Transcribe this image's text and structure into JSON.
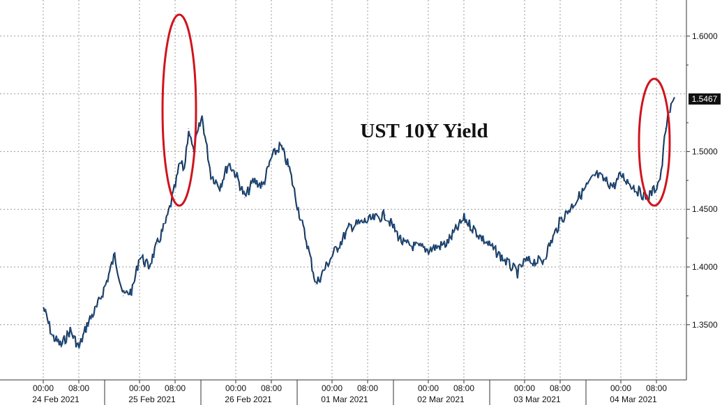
{
  "chart_data": {
    "type": "line",
    "title": "UST 10Y Yield",
    "xlabel": "",
    "ylabel": "",
    "ylim": [
      1.31,
      1.63
    ],
    "grid": true,
    "y_ticks": [
      "1.3500",
      "1.4000",
      "1.4500",
      "1.5000",
      "1.6000"
    ],
    "last_value_label": "1.5467",
    "x_ticks": [
      {
        "time": "00:00",
        "date": "24 Feb 2021"
      },
      {
        "time": "08:00",
        "date": ""
      },
      {
        "time": "00:00",
        "date": "25 Feb 2021"
      },
      {
        "time": "08:00",
        "date": ""
      },
      {
        "time": "00:00",
        "date": "26 Feb 2021"
      },
      {
        "time": "08:00",
        "date": ""
      },
      {
        "time": "00:00",
        "date": "01 Mar 2021"
      },
      {
        "time": "08:00",
        "date": ""
      },
      {
        "time": "00:00",
        "date": "02 Mar 2021"
      },
      {
        "time": "08:00",
        "date": ""
      },
      {
        "time": "00:00",
        "date": "03 Mar 2021"
      },
      {
        "time": "08:00",
        "date": ""
      },
      {
        "time": "00:00",
        "date": "04 Mar 2021"
      },
      {
        "time": "08:00",
        "date": ""
      }
    ],
    "series": [
      {
        "color": "#1f5fa8",
        "x": [
          "24 Feb 2021 00:00",
          "24 Feb 2021 02:00",
          "24 Feb 2021 04:00",
          "24 Feb 2021 06:00",
          "24 Feb 2021 08:00",
          "24 Feb 2021 10:00",
          "24 Feb 2021 12:00",
          "24 Feb 2021 14:00",
          "24 Feb 2021 16:00",
          "24 Feb 2021 18:00",
          "24 Feb 2021 20:00",
          "25 Feb 2021 00:00",
          "25 Feb 2021 02:00",
          "25 Feb 2021 04:00",
          "25 Feb 2021 06:00",
          "25 Feb 2021 07:00",
          "25 Feb 2021 08:00",
          "25 Feb 2021 09:00",
          "25 Feb 2021 10:00",
          "25 Feb 2021 11:00",
          "25 Feb 2021 12:00",
          "25 Feb 2021 14:00",
          "25 Feb 2021 16:00",
          "25 Feb 2021 18:00",
          "25 Feb 2021 20:00",
          "26 Feb 2021 00:00",
          "26 Feb 2021 02:00",
          "26 Feb 2021 04:00",
          "26 Feb 2021 06:00",
          "26 Feb 2021 08:00",
          "26 Feb 2021 10:00",
          "26 Feb 2021 12:00",
          "26 Feb 2021 14:00",
          "26 Feb 2021 16:00",
          "26 Feb 2021 18:00",
          "01 Mar 2021 00:00",
          "01 Mar 2021 04:00",
          "01 Mar 2021 08:00",
          "01 Mar 2021 12:00",
          "01 Mar 2021 16:00",
          "02 Mar 2021 00:00",
          "02 Mar 2021 04:00",
          "02 Mar 2021 08:00",
          "02 Mar 2021 12:00",
          "02 Mar 2021 16:00",
          "02 Mar 2021 20:00",
          "03 Mar 2021 00:00",
          "03 Mar 2021 04:00",
          "03 Mar 2021 08:00",
          "03 Mar 2021 12:00",
          "03 Mar 2021 16:00",
          "03 Mar 2021 20:00",
          "04 Mar 2021 00:00",
          "04 Mar 2021 04:00",
          "04 Mar 2021 06:00",
          "04 Mar 2021 08:00",
          "04 Mar 2021 09:00",
          "04 Mar 2021 10:00",
          "04 Mar 2021 11:00",
          "04 Mar 2021 12:00"
        ],
        "y": [
          1.365,
          1.34,
          1.332,
          1.345,
          1.33,
          1.352,
          1.365,
          1.385,
          1.41,
          1.375,
          1.38,
          1.41,
          1.4,
          1.42,
          1.44,
          1.455,
          1.47,
          1.49,
          1.485,
          1.52,
          1.5,
          1.53,
          1.48,
          1.47,
          1.49,
          1.48,
          1.46,
          1.475,
          1.47,
          1.495,
          1.505,
          1.485,
          1.45,
          1.42,
          1.385,
          1.41,
          1.435,
          1.44,
          1.445,
          1.42,
          1.415,
          1.42,
          1.442,
          1.425,
          1.41,
          1.395,
          1.405,
          1.405,
          1.44,
          1.46,
          1.48,
          1.47,
          1.48,
          1.465,
          1.46,
          1.47,
          1.48,
          1.52,
          1.535,
          1.547
        ]
      }
    ]
  }
}
